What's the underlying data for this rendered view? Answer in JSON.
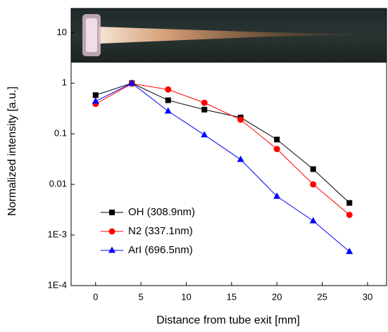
{
  "chart_data": {
    "type": "line",
    "x_label": "Distance from tube exit [mm]",
    "y_label": "Normalized intensity [a.u.]",
    "log_y": true,
    "legend": "lower-left",
    "xlim": [
      -2.7,
      32.1
    ],
    "xticks": [
      0,
      5,
      10,
      15,
      20,
      25,
      30
    ],
    "ylim": [
      0.0001,
      30
    ],
    "yticks": [
      {
        "value": 0.0001,
        "label": "1E-4"
      },
      {
        "value": 0.001,
        "label": "1E-3"
      },
      0.01,
      0.1,
      1,
      10
    ],
    "x": [
      0,
      4,
      8,
      12,
      16,
      20,
      24,
      28
    ],
    "series": [
      {
        "name": "OH (308.9nm)",
        "color": "#000000",
        "marker": "square",
        "values": [
          0.58,
          1.0,
          0.46,
          0.3,
          0.21,
          0.077,
          0.02,
          0.0043
        ]
      },
      {
        "name": "N2 (337.1nm)",
        "color": "#ff0000",
        "marker": "circle",
        "values": [
          0.39,
          0.98,
          0.75,
          0.41,
          0.19,
          0.05,
          0.01,
          0.0025
        ]
      },
      {
        "name": "ArI (696.5nm)",
        "color": "#0000ff",
        "marker": "triangle",
        "values": [
          0.44,
          1.0,
          0.28,
          0.095,
          0.031,
          0.0058,
          0.0019,
          0.00047
        ]
      }
    ]
  }
}
